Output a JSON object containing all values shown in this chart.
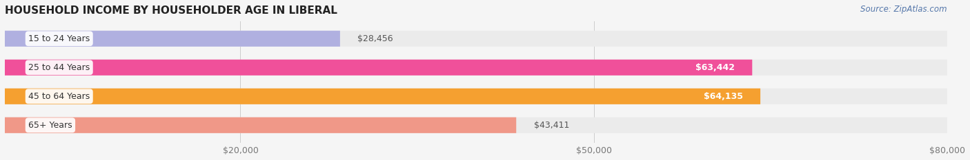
{
  "title": "HOUSEHOLD INCOME BY HOUSEHOLDER AGE IN LIBERAL",
  "source": "Source: ZipAtlas.com",
  "categories": [
    "15 to 24 Years",
    "25 to 44 Years",
    "45 to 64 Years",
    "65+ Years"
  ],
  "values": [
    28456,
    63442,
    64135,
    43411
  ],
  "bar_colors": [
    "#b0b0e0",
    "#f0509a",
    "#f5a030",
    "#f09888"
  ],
  "value_labels": [
    "$28,456",
    "$63,442",
    "$64,135",
    "$43,411"
  ],
  "label_inside": [
    false,
    true,
    true,
    false
  ],
  "xlim_max": 80000,
  "xticks": [
    20000,
    50000,
    80000
  ],
  "xtick_labels": [
    "$20,000",
    "$50,000",
    "$80,000"
  ],
  "bg_color": "#f5f5f5",
  "bar_bg_color": "#ebebeb",
  "title_fontsize": 11,
  "tick_fontsize": 9,
  "value_fontsize": 9,
  "cat_fontsize": 9,
  "source_fontsize": 8.5
}
